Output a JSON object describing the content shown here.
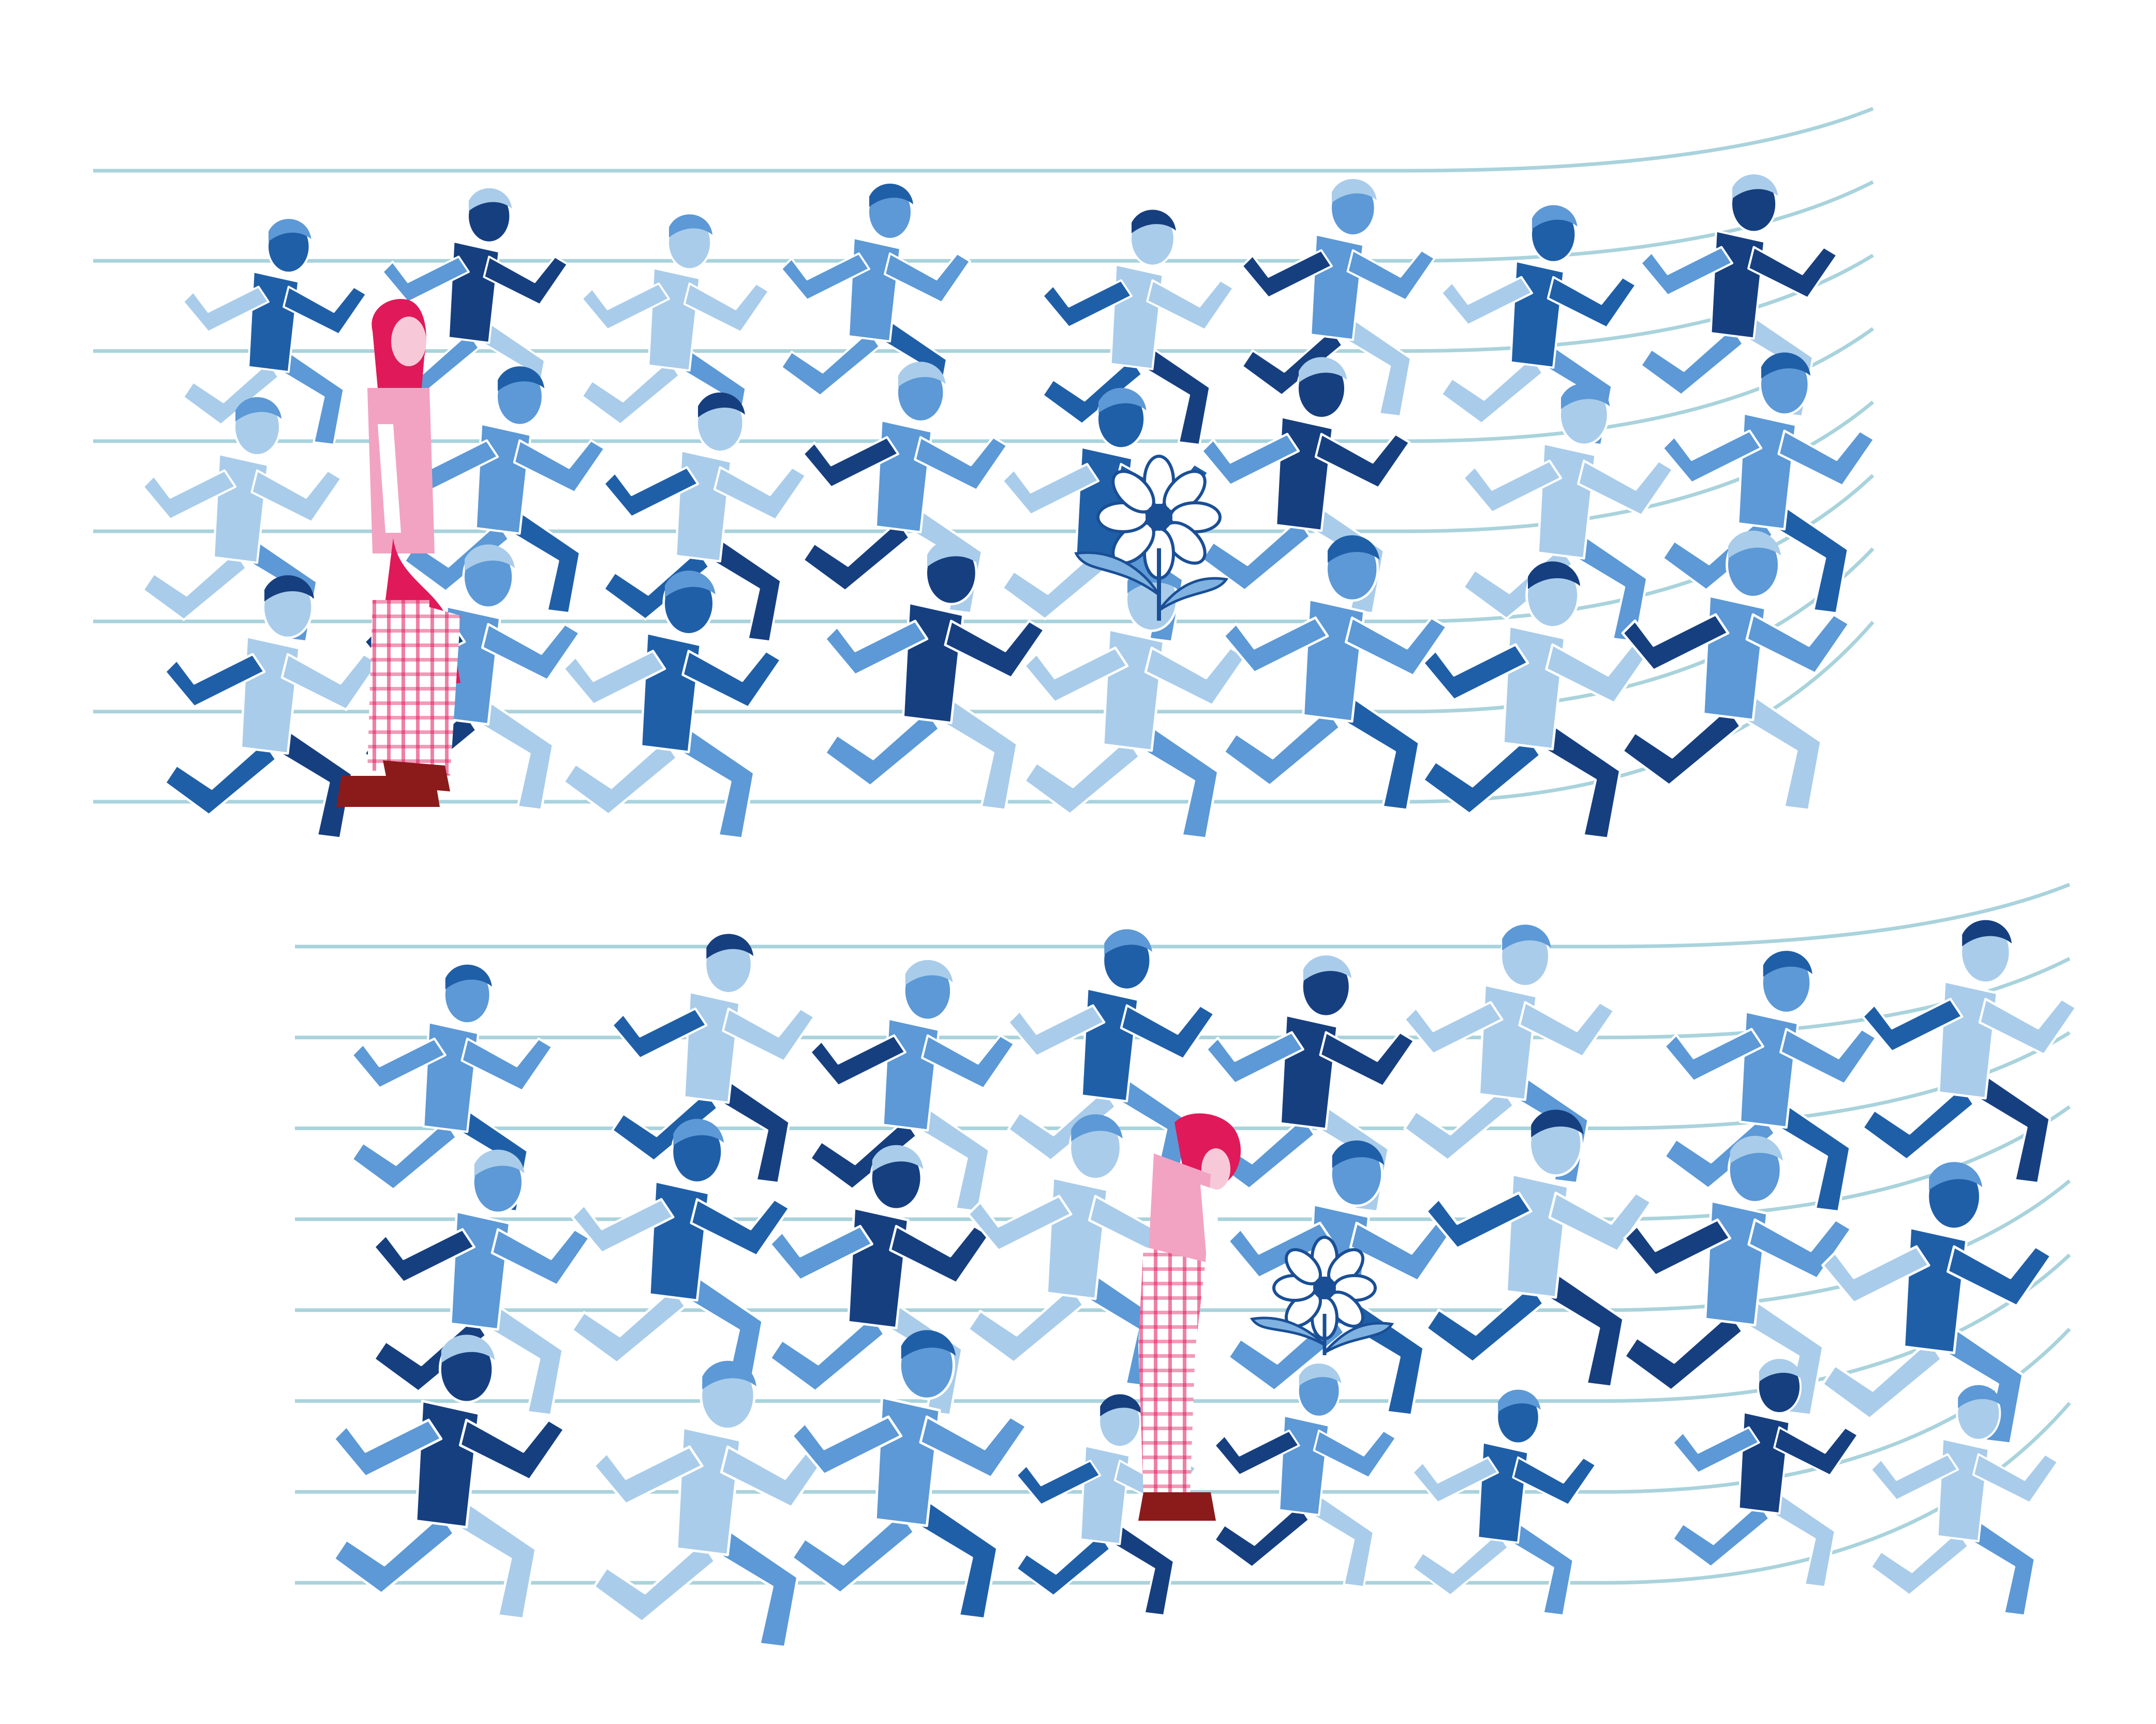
{
  "palette": {
    "background": "#ffffff",
    "track_line": "#a9d3dc",
    "runner_light": "#a9ccea",
    "runner_mid": "#5c99d6",
    "runner_dark": "#1f5fa8",
    "runner_navy": "#163f80",
    "outline": "#ffffff",
    "protagonist_top": "#f2a3c2",
    "protagonist_hair": "#e0195a",
    "protagonist_pants": "#f0a0bb",
    "protagonist_shoes": "#8b1a1a",
    "flower_outline": "#1a4f96",
    "flower_fill": "#ffffff",
    "flower_leaf": "#7fb2e0"
  },
  "panels": [
    {
      "name": "top-panel",
      "protagonist_pose": "walking",
      "flower_present": true
    },
    {
      "name": "bottom-panel",
      "protagonist_pose": "bending-to-flower",
      "flower_present": true
    }
  ]
}
